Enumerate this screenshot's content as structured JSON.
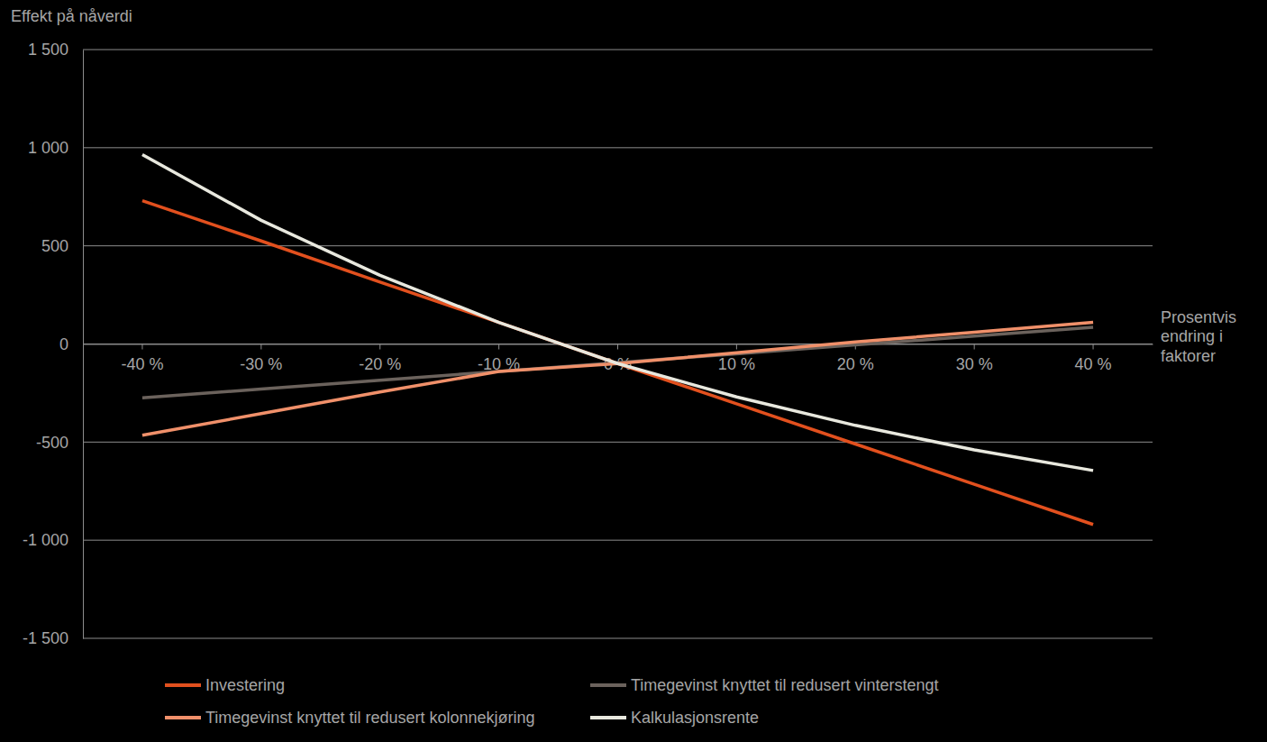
{
  "chart_data": {
    "type": "line",
    "y_label": "Effekt på nåverdi",
    "x_label": "Prosentvis endring i faktorer",
    "categories": [
      "-40 %",
      "-30 %",
      "-20 %",
      "-10 %",
      "0 %",
      "10 %",
      "20 %",
      "30 %",
      "40 %"
    ],
    "series": [
      {
        "name": "Investering",
        "color": "#e2501e",
        "values": [
          730,
          525,
          315,
          110,
          -100,
          -305,
          -510,
          -715,
          -920
        ]
      },
      {
        "name": "Timegevinst knyttet til redusert vinterstengt",
        "color": "#6b625c",
        "values": [
          -275,
          -230,
          -185,
          -140,
          -95,
          -50,
          -5,
          40,
          85
        ]
      },
      {
        "name": "Timegevinst knyttet til redusert kolonnekjøring",
        "color": "#f0906a",
        "values": [
          -465,
          -355,
          -245,
          -140,
          -100,
          -45,
          10,
          60,
          110
        ]
      },
      {
        "name": "Kalkulasjonsrente",
        "color": "#e8e8de",
        "values": [
          965,
          630,
          350,
          110,
          -100,
          -270,
          -415,
          -540,
          -645
        ]
      }
    ],
    "ylim": [
      -1500,
      1500
    ],
    "yticks": [
      {
        "value": -1500,
        "label": "-1 500"
      },
      {
        "value": -1000,
        "label": "-1 000"
      },
      -500,
      0,
      500,
      {
        "value": 1000,
        "label": "1 000"
      },
      {
        "value": 1500,
        "label": "1 500"
      }
    ],
    "grid": true,
    "legend": "bottom"
  }
}
